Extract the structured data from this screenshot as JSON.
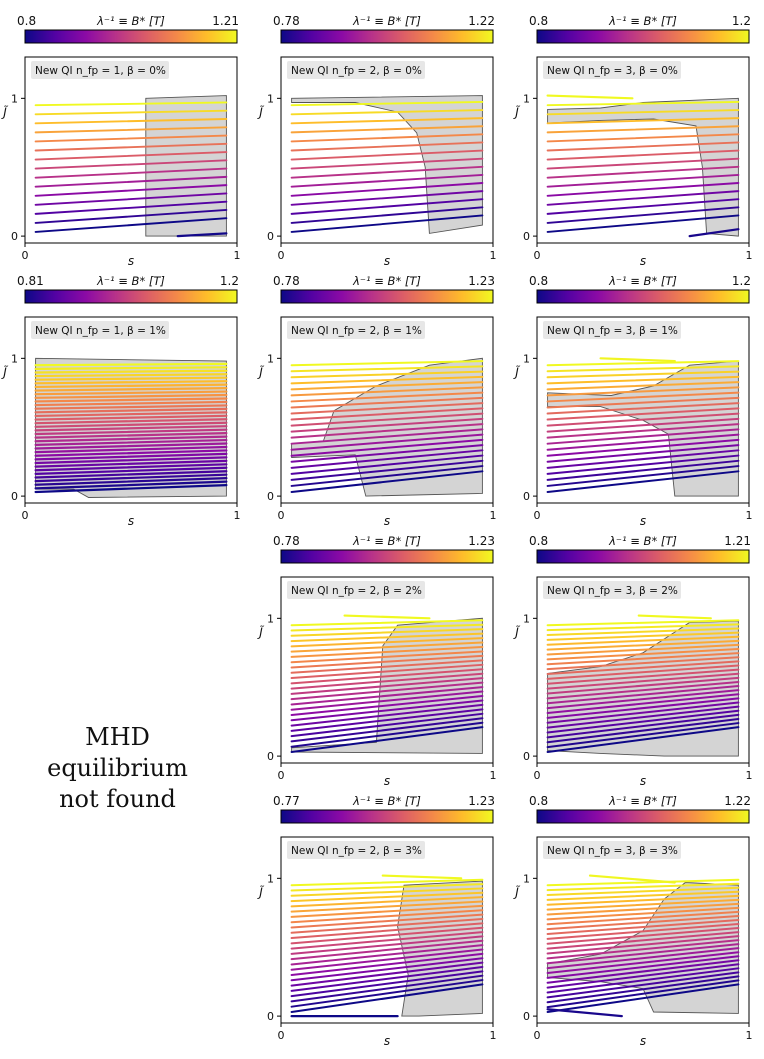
{
  "colorbar_label": "λ⁻¹ ≡ B* [T]",
  "axis": {
    "x_label": "s",
    "y_label": "J̃",
    "x_ticks": [
      "0",
      "1"
    ],
    "y_ticks": [
      "0",
      "1"
    ]
  },
  "not_found_text": [
    "MHD",
    "equilibrium",
    "not found"
  ],
  "colormap": [
    "#0d0887",
    "#5302a3",
    "#8b0aa5",
    "#b83289",
    "#db5c68",
    "#f48849",
    "#febd2a",
    "#f0f921"
  ],
  "chart_data": [
    {
      "id": "r1c1",
      "type": "line",
      "title": "New QI n_fp = 1, β = 0%",
      "nfp": 1,
      "beta_percent": 0,
      "b_min": "0.8",
      "b_max": "1.21",
      "n_lines": 15,
      "line_start_s": 0.05,
      "spread": 0.1,
      "xlim": [
        0,
        1
      ],
      "ylim": [
        -0.05,
        1.3
      ],
      "shaded_region": [
        [
          0.57,
          1.0
        ],
        [
          0.95,
          1.02
        ],
        [
          0.95,
          0.0
        ],
        [
          0.57,
          0.0
        ]
      ],
      "short_segments": [
        [
          0.72,
          0.0,
          0.95,
          0.02
        ]
      ]
    },
    {
      "id": "r1c2",
      "type": "line",
      "title": "New QI n_fp = 2, β = 0%",
      "nfp": 2,
      "beta_percent": 0,
      "b_min": "0.78",
      "b_max": "1.22",
      "n_lines": 15,
      "line_start_s": 0.05,
      "spread": 0.12,
      "xlim": [
        0,
        1
      ],
      "ylim": [
        -0.05,
        1.3
      ],
      "shaded_region": [
        [
          0.05,
          1.0
        ],
        [
          0.95,
          1.02
        ],
        [
          0.95,
          0.08
        ],
        [
          0.7,
          0.02
        ],
        [
          0.68,
          0.5
        ],
        [
          0.64,
          0.75
        ],
        [
          0.55,
          0.9
        ],
        [
          0.35,
          0.97
        ],
        [
          0.05,
          0.97
        ]
      ],
      "short_segments": []
    },
    {
      "id": "r1c3",
      "type": "line",
      "title": "New QI n_fp = 3, β = 0%",
      "nfp": 3,
      "beta_percent": 0,
      "b_min": "0.8",
      "b_max": "1.2",
      "n_lines": 15,
      "line_start_s": 0.05,
      "spread": 0.12,
      "xlim": [
        0,
        1
      ],
      "ylim": [
        -0.05,
        1.3
      ],
      "shaded_region": [
        [
          0.05,
          0.92
        ],
        [
          0.3,
          0.93
        ],
        [
          0.5,
          0.97
        ],
        [
          0.95,
          1.0
        ],
        [
          0.95,
          0.0
        ],
        [
          0.8,
          0.02
        ],
        [
          0.78,
          0.5
        ],
        [
          0.75,
          0.8
        ],
        [
          0.55,
          0.85
        ],
        [
          0.3,
          0.84
        ],
        [
          0.05,
          0.82
        ]
      ],
      "short_segments": [
        [
          0.05,
          1.02,
          0.45,
          1.0
        ],
        [
          0.72,
          0.0,
          0.95,
          0.05
        ]
      ]
    },
    {
      "id": "r2c1",
      "type": "line",
      "title": "New QI n_fp = 1, β = 1%",
      "nfp": 1,
      "beta_percent": 1,
      "b_min": "0.81",
      "b_max": "1.2",
      "n_lines": 36,
      "line_start_s": 0.05,
      "spread": 0.05,
      "xlim": [
        0,
        1
      ],
      "ylim": [
        -0.05,
        1.3
      ],
      "shaded_region": [
        [
          0.05,
          1.0
        ],
        [
          0.95,
          0.98
        ],
        [
          0.95,
          0.0
        ],
        [
          0.3,
          -0.01
        ],
        [
          0.23,
          0.05
        ],
        [
          0.05,
          0.05
        ]
      ],
      "short_segments": []
    },
    {
      "id": "r2c2",
      "type": "line",
      "title": "New QI n_fp = 2, β = 1%",
      "nfp": 2,
      "beta_percent": 1,
      "b_min": "0.78",
      "b_max": "1.23",
      "n_lines": 22,
      "line_start_s": 0.05,
      "spread": 0.15,
      "xlim": [
        0,
        1
      ],
      "ylim": [
        -0.05,
        1.3
      ],
      "shaded_region": [
        [
          0.05,
          0.38
        ],
        [
          0.2,
          0.4
        ],
        [
          0.25,
          0.62
        ],
        [
          0.45,
          0.8
        ],
        [
          0.7,
          0.95
        ],
        [
          0.95,
          1.0
        ],
        [
          0.95,
          0.02
        ],
        [
          0.4,
          0.0
        ],
        [
          0.35,
          0.3
        ],
        [
          0.05,
          0.28
        ]
      ],
      "short_segments": []
    },
    {
      "id": "r2c3",
      "type": "line",
      "title": "New QI n_fp = 3, β = 1%",
      "nfp": 3,
      "beta_percent": 1,
      "b_min": "0.8",
      "b_max": "1.2",
      "n_lines": 22,
      "line_start_s": 0.05,
      "spread": 0.15,
      "xlim": [
        0,
        1
      ],
      "ylim": [
        -0.05,
        1.3
      ],
      "shaded_region": [
        [
          0.05,
          0.75
        ],
        [
          0.35,
          0.73
        ],
        [
          0.55,
          0.8
        ],
        [
          0.72,
          0.95
        ],
        [
          0.95,
          0.98
        ],
        [
          0.95,
          0.0
        ],
        [
          0.65,
          0.0
        ],
        [
          0.62,
          0.45
        ],
        [
          0.5,
          0.55
        ],
        [
          0.3,
          0.65
        ],
        [
          0.05,
          0.65
        ]
      ],
      "short_segments": [
        [
          0.3,
          1.0,
          0.65,
          0.98
        ]
      ]
    },
    {
      "id": "r3c2",
      "type": "line",
      "title": "New QI n_fp = 2, β = 2%",
      "nfp": 2,
      "beta_percent": 2,
      "b_min": "0.78",
      "b_max": "1.23",
      "n_lines": 25,
      "line_start_s": 0.05,
      "spread": 0.18,
      "xlim": [
        0,
        1
      ],
      "ylim": [
        -0.05,
        1.3
      ],
      "shaded_region": [
        [
          0.05,
          0.06
        ],
        [
          0.45,
          0.1
        ],
        [
          0.48,
          0.8
        ],
        [
          0.55,
          0.95
        ],
        [
          0.95,
          1.0
        ],
        [
          0.95,
          0.02
        ],
        [
          0.05,
          0.03
        ]
      ],
      "short_segments": [
        [
          0.3,
          1.02,
          0.7,
          1.0
        ]
      ]
    },
    {
      "id": "r3c3",
      "type": "line",
      "title": "New QI n_fp = 3, β = 2%",
      "nfp": 3,
      "beta_percent": 2,
      "b_min": "0.8",
      "b_max": "1.21",
      "n_lines": 27,
      "line_start_s": 0.05,
      "spread": 0.18,
      "xlim": [
        0,
        1
      ],
      "ylim": [
        -0.05,
        1.3
      ],
      "shaded_region": [
        [
          0.05,
          0.6
        ],
        [
          0.3,
          0.65
        ],
        [
          0.5,
          0.75
        ],
        [
          0.65,
          0.9
        ],
        [
          0.72,
          0.97
        ],
        [
          0.95,
          0.98
        ],
        [
          0.95,
          0.0
        ],
        [
          0.6,
          0.0
        ],
        [
          0.3,
          0.02
        ],
        [
          0.05,
          0.04
        ]
      ],
      "short_segments": [
        [
          0.48,
          1.02,
          0.82,
          1.0
        ]
      ]
    },
    {
      "id": "r4c2",
      "type": "line",
      "title": "New QI n_fp = 2, β = 3%",
      "nfp": 2,
      "beta_percent": 3,
      "b_min": "0.77",
      "b_max": "1.23",
      "n_lines": 25,
      "line_start_s": 0.05,
      "spread": 0.2,
      "xlim": [
        0,
        1
      ],
      "ylim": [
        -0.05,
        1.3
      ],
      "shaded_region": [
        [
          0.57,
          0.0
        ],
        [
          0.6,
          0.3
        ],
        [
          0.55,
          0.65
        ],
        [
          0.58,
          0.95
        ],
        [
          0.95,
          0.98
        ],
        [
          0.95,
          0.02
        ],
        [
          0.65,
          0.0
        ]
      ],
      "short_segments": [
        [
          0.48,
          1.02,
          0.85,
          1.0
        ],
        [
          0.05,
          0.0,
          0.55,
          0.0
        ]
      ]
    },
    {
      "id": "r4c3",
      "type": "line",
      "title": "New QI n_fp = 3, β = 3%",
      "nfp": 3,
      "beta_percent": 3,
      "b_min": "0.8",
      "b_max": "1.22",
      "n_lines": 27,
      "line_start_s": 0.05,
      "spread": 0.2,
      "xlim": [
        0,
        1
      ],
      "ylim": [
        -0.05,
        1.3
      ],
      "shaded_region": [
        [
          0.05,
          0.38
        ],
        [
          0.3,
          0.45
        ],
        [
          0.5,
          0.62
        ],
        [
          0.6,
          0.85
        ],
        [
          0.7,
          0.97
        ],
        [
          0.95,
          0.95
        ],
        [
          0.95,
          0.02
        ],
        [
          0.55,
          0.03
        ],
        [
          0.5,
          0.2
        ],
        [
          0.3,
          0.25
        ],
        [
          0.05,
          0.28
        ]
      ],
      "short_segments": [
        [
          0.25,
          1.02,
          0.65,
          0.97
        ],
        [
          0.05,
          0.05,
          0.4,
          0.0
        ]
      ]
    }
  ]
}
